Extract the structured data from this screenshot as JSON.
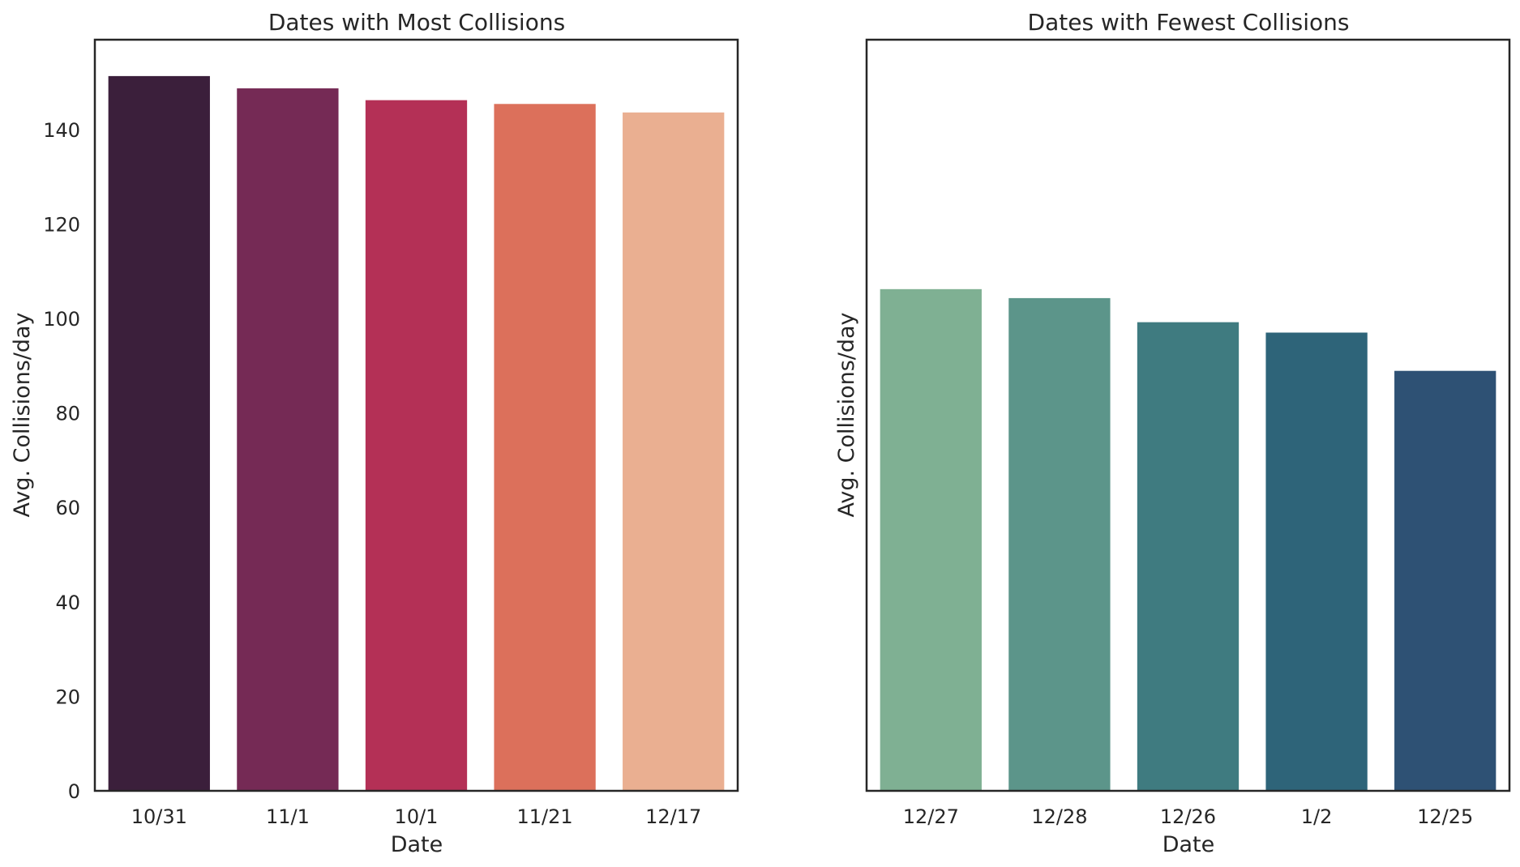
{
  "chart_data": [
    {
      "type": "bar",
      "title": "Dates with Most Collisions",
      "xlabel": "Date",
      "ylabel": "Avg. Collisions/day",
      "categories": [
        "10/31",
        "11/1",
        "10/1",
        "11/21",
        "12/17"
      ],
      "values": [
        151.3,
        148.7,
        146.2,
        145.4,
        143.6
      ],
      "colors": [
        "#3b1f3b",
        "#752a55",
        "#b43056",
        "#dc705b",
        "#eaaf91"
      ],
      "ylim": [
        0,
        159
      ],
      "yticks": [
        0,
        20,
        40,
        60,
        80,
        100,
        120,
        140
      ],
      "grid": false
    },
    {
      "type": "bar",
      "title": "Dates with Fewest Collisions",
      "xlabel": "Date",
      "ylabel": "Avg. Collisions/day",
      "categories": [
        "12/27",
        "12/28",
        "12/26",
        "1/2",
        "12/25"
      ],
      "values": [
        106.2,
        104.3,
        99.2,
        97.0,
        88.9
      ],
      "colors": [
        "#7fb093",
        "#5c958a",
        "#3f7b80",
        "#2e6479",
        "#2e5174"
      ],
      "ylim": [
        0,
        159
      ],
      "yticks": [],
      "grid": false
    }
  ]
}
